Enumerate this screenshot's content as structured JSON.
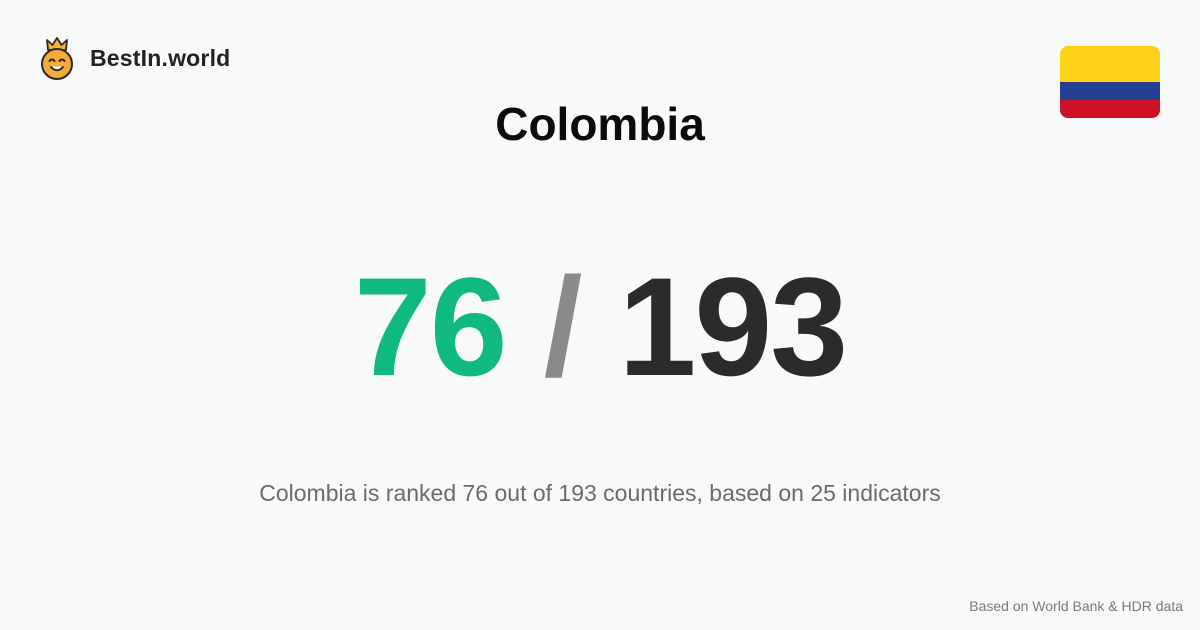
{
  "brand": {
    "logo_icon": "crowned-smiley-icon",
    "name": "BestIn.world"
  },
  "country": {
    "name": "Colombia",
    "flag_icon": "colombia-flag-icon",
    "flag_colors": {
      "yellow": "#FCD116",
      "blue": "#243F93",
      "red": "#CE1126"
    }
  },
  "ranking": {
    "rank": "76",
    "separator": "/",
    "total": "193",
    "colors": {
      "rank": "#10b981",
      "separator": "#8a8a8a",
      "total": "#2b2b2b"
    }
  },
  "description": "Colombia is ranked 76 out of 193 countries, based on 25 indicators",
  "footer": {
    "source_note": "Based on World Bank & HDR data"
  }
}
